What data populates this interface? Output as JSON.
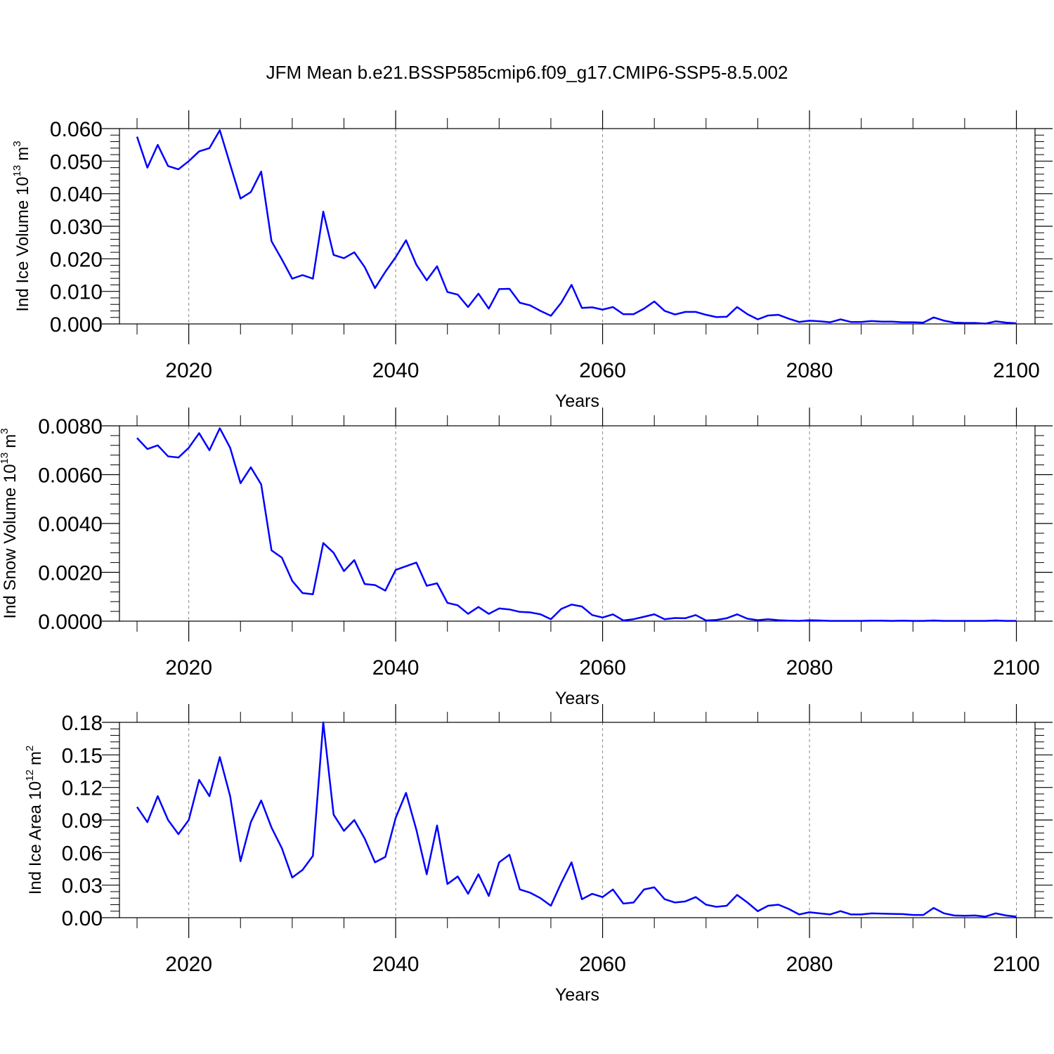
{
  "title": "JFM Mean b.e21.BSSP585cmip6.f09_g17.CMIP6-SSP5-8.5.002",
  "chart_data": [
    {
      "type": "line",
      "ylabel": [
        "Ind Ice Volume 10",
        "13",
        "m",
        "3"
      ],
      "xlabel": "Years",
      "color": "#0000ff",
      "grid": true,
      "xlim": [
        2013.3,
        2101.8
      ],
      "xticks": [
        2020,
        2040,
        2060,
        2080,
        2100
      ],
      "ylim": [
        0,
        0.06
      ],
      "yticks": [
        {
          "value": 0,
          "label": "0.000"
        },
        {
          "value": 0.01,
          "label": "0.010"
        },
        {
          "value": 0.02,
          "label": "0.020"
        },
        {
          "value": 0.03,
          "label": "0.030"
        },
        {
          "value": 0.04,
          "label": "0.040"
        },
        {
          "value": 0.05,
          "label": "0.050"
        },
        {
          "value": 0.06,
          "label": "0.060"
        }
      ],
      "x": [
        2015,
        2016,
        2017,
        2018,
        2019,
        2020,
        2021,
        2022,
        2023,
        2024,
        2025,
        2026,
        2027,
        2028,
        2029,
        2030,
        2031,
        2032,
        2033,
        2034,
        2035,
        2036,
        2037,
        2038,
        2039,
        2040,
        2041,
        2042,
        2043,
        2044,
        2045,
        2046,
        2047,
        2048,
        2049,
        2050,
        2051,
        2052,
        2053,
        2054,
        2055,
        2056,
        2057,
        2058,
        2059,
        2060,
        2061,
        2062,
        2063,
        2064,
        2065,
        2066,
        2067,
        2068,
        2069,
        2070,
        2071,
        2072,
        2073,
        2074,
        2075,
        2076,
        2077,
        2078,
        2079,
        2080,
        2081,
        2082,
        2083,
        2084,
        2085,
        2086,
        2087,
        2088,
        2089,
        2090,
        2091,
        2092,
        2093,
        2094,
        2095,
        2096,
        2097,
        2098,
        2099,
        2100
      ],
      "values": [
        0.0575,
        0.048,
        0.055,
        0.0485,
        0.0475,
        0.05,
        0.053,
        0.054,
        0.0595,
        0.049,
        0.0385,
        0.0405,
        0.0468,
        0.0254,
        0.0198,
        0.0139,
        0.015,
        0.0139,
        0.0345,
        0.0212,
        0.0202,
        0.022,
        0.0175,
        0.011,
        0.016,
        0.0205,
        0.0257,
        0.0182,
        0.0134,
        0.0177,
        0.0098,
        0.009,
        0.0052,
        0.0093,
        0.0047,
        0.0107,
        0.0108,
        0.0065,
        0.0057,
        0.004,
        0.0025,
        0.0065,
        0.012,
        0.0049,
        0.0051,
        0.0044,
        0.0052,
        0.003,
        0.003,
        0.0047,
        0.0069,
        0.004,
        0.0029,
        0.0037,
        0.0037,
        0.0028,
        0.0021,
        0.0022,
        0.0052,
        0.003,
        0.0014,
        0.0026,
        0.0028,
        0.0016,
        0.0006,
        0.001,
        0.0008,
        0.0005,
        0.0014,
        0.0006,
        0.0006,
        0.0009,
        0.0007,
        0.0007,
        0.0005,
        0.0005,
        0.0004,
        0.002,
        0.001,
        0.0004,
        0.0003,
        0.0003,
        0.0001,
        0.0008,
        0.0004,
        0.0002
      ]
    },
    {
      "type": "line",
      "ylabel": [
        "Ind Snow Volume 10",
        "13",
        "m",
        "3"
      ],
      "xlabel": "Years",
      "color": "#0000ff",
      "grid": true,
      "xlim": [
        2013.3,
        2101.8
      ],
      "xticks": [
        2020,
        2040,
        2060,
        2080,
        2100
      ],
      "ylim": [
        0,
        0.008
      ],
      "yticks": [
        {
          "value": 0,
          "label": "0.0000"
        },
        {
          "value": 0.002,
          "label": "0.0020"
        },
        {
          "value": 0.004,
          "label": "0.0040"
        },
        {
          "value": 0.006,
          "label": "0.0060"
        },
        {
          "value": 0.008,
          "label": "0.0080"
        }
      ],
      "x": [
        2015,
        2016,
        2017,
        2018,
        2019,
        2020,
        2021,
        2022,
        2023,
        2024,
        2025,
        2026,
        2027,
        2028,
        2029,
        2030,
        2031,
        2032,
        2033,
        2034,
        2035,
        2036,
        2037,
        2038,
        2039,
        2040,
        2041,
        2042,
        2043,
        2044,
        2045,
        2046,
        2047,
        2048,
        2049,
        2050,
        2051,
        2052,
        2053,
        2054,
        2055,
        2056,
        2057,
        2058,
        2059,
        2060,
        2061,
        2062,
        2063,
        2064,
        2065,
        2066,
        2067,
        2068,
        2069,
        2070,
        2071,
        2072,
        2073,
        2074,
        2075,
        2076,
        2077,
        2078,
        2079,
        2080,
        2081,
        2082,
        2083,
        2084,
        2085,
        2086,
        2087,
        2088,
        2089,
        2090,
        2091,
        2092,
        2093,
        2094,
        2095,
        2096,
        2097,
        2098,
        2099,
        2100
      ],
      "values": [
        0.0075,
        0.00705,
        0.0072,
        0.00675,
        0.0067,
        0.0071,
        0.0077,
        0.007,
        0.0079,
        0.0071,
        0.00565,
        0.0063,
        0.0056,
        0.0029,
        0.0026,
        0.00165,
        0.00115,
        0.0011,
        0.0032,
        0.0028,
        0.00205,
        0.0025,
        0.00152,
        0.00148,
        0.00125,
        0.0021,
        0.00225,
        0.0024,
        0.00145,
        0.00155,
        0.00075,
        0.00065,
        0.0003,
        0.00058,
        0.0003,
        0.00052,
        0.00048,
        0.00038,
        0.00036,
        0.00028,
        8e-05,
        0.0005,
        0.00068,
        0.0006,
        0.00025,
        0.00015,
        0.00028,
        3e-05,
        8e-05,
        0.00018,
        0.00028,
        8e-05,
        0.00013,
        0.00012,
        0.00025,
        3e-05,
        5e-05,
        0.00012,
        0.00028,
        0.0001,
        4e-05,
        8e-05,
        4e-05,
        2e-05,
        1e-05,
        4e-05,
        3e-05,
        1e-05,
        1e-05,
        1e-05,
        1e-05,
        2e-05,
        2e-05,
        1e-05,
        2e-05,
        1e-05,
        1e-05,
        3e-05,
        1e-05,
        1e-05,
        1e-05,
        1e-05,
        1e-05,
        3e-05,
        1e-05,
        1e-05
      ]
    },
    {
      "type": "line",
      "ylabel": [
        "Ind Ice Area 10",
        "12",
        "m",
        "2"
      ],
      "xlabel": "Years",
      "color": "#0000ff",
      "grid": true,
      "xlim": [
        2013.3,
        2101.8
      ],
      "xticks": [
        2020,
        2040,
        2060,
        2080,
        2100
      ],
      "ylim": [
        0,
        0.18
      ],
      "yticks": [
        {
          "value": 0,
          "label": "0.00"
        },
        0.03,
        0.06,
        0.09,
        0.12,
        0.15,
        0.18
      ],
      "x": [
        2015,
        2016,
        2017,
        2018,
        2019,
        2020,
        2021,
        2022,
        2023,
        2024,
        2025,
        2026,
        2027,
        2028,
        2029,
        2030,
        2031,
        2032,
        2033,
        2034,
        2035,
        2036,
        2037,
        2038,
        2039,
        2040,
        2041,
        2042,
        2043,
        2044,
        2045,
        2046,
        2047,
        2048,
        2049,
        2050,
        2051,
        2052,
        2053,
        2054,
        2055,
        2056,
        2057,
        2058,
        2059,
        2060,
        2061,
        2062,
        2063,
        2064,
        2065,
        2066,
        2067,
        2068,
        2069,
        2070,
        2071,
        2072,
        2073,
        2074,
        2075,
        2076,
        2077,
        2078,
        2079,
        2080,
        2081,
        2082,
        2083,
        2084,
        2085,
        2086,
        2087,
        2088,
        2089,
        2090,
        2091,
        2092,
        2093,
        2094,
        2095,
        2096,
        2097,
        2098,
        2099,
        2100
      ],
      "values": [
        0.102,
        0.088,
        0.112,
        0.09,
        0.077,
        0.09,
        0.127,
        0.112,
        0.148,
        0.112,
        0.052,
        0.088,
        0.108,
        0.083,
        0.064,
        0.037,
        0.044,
        0.057,
        0.18,
        0.095,
        0.08,
        0.09,
        0.073,
        0.051,
        0.056,
        0.092,
        0.115,
        0.081,
        0.04,
        0.085,
        0.031,
        0.038,
        0.022,
        0.04,
        0.02,
        0.051,
        0.058,
        0.026,
        0.023,
        0.018,
        0.011,
        0.032,
        0.051,
        0.017,
        0.022,
        0.019,
        0.026,
        0.013,
        0.014,
        0.026,
        0.028,
        0.017,
        0.014,
        0.015,
        0.019,
        0.012,
        0.01,
        0.011,
        0.021,
        0.014,
        0.006,
        0.011,
        0.012,
        0.008,
        0.003,
        0.005,
        0.004,
        0.003,
        0.006,
        0.003,
        0.003,
        0.004,
        0.0037,
        0.0035,
        0.0033,
        0.0025,
        0.0025,
        0.009,
        0.004,
        0.002,
        0.0018,
        0.002,
        0.001,
        0.004,
        0.002,
        0.001
      ]
    }
  ]
}
